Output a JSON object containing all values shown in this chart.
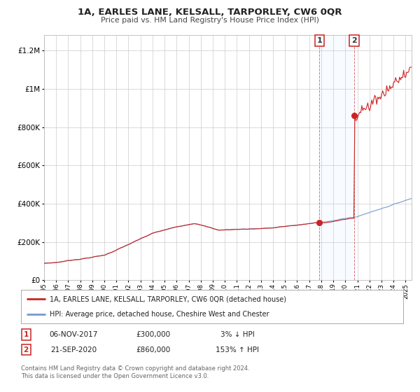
{
  "title": "1A, EARLES LANE, KELSALL, TARPORLEY, CW6 0QR",
  "subtitle": "Price paid vs. HM Land Registry's House Price Index (HPI)",
  "background_color": "#ffffff",
  "plot_bg_color": "#ffffff",
  "grid_color": "#cccccc",
  "hpi_line_color": "#7799cc",
  "price_line_color": "#cc2222",
  "sale1_date_num": 2017.85,
  "sale1_price": 300000,
  "sale2_date_num": 2020.73,
  "sale2_price": 860000,
  "legend_line1": "1A, EARLES LANE, KELSALL, TARPORLEY, CW6 0QR (detached house)",
  "legend_line2": "HPI: Average price, detached house, Cheshire West and Chester",
  "table_row1": [
    "1",
    "06-NOV-2017",
    "£300,000",
    "3% ↓ HPI"
  ],
  "table_row2": [
    "2",
    "21-SEP-2020",
    "£860,000",
    "153% ↑ HPI"
  ],
  "footnote1": "Contains HM Land Registry data © Crown copyright and database right 2024.",
  "footnote2": "This data is licensed under the Open Government Licence v3.0.",
  "xmin": 1995.0,
  "xmax": 2025.5,
  "ymin": 0,
  "ymax": 1280000,
  "shade_color": "#ddeeff"
}
